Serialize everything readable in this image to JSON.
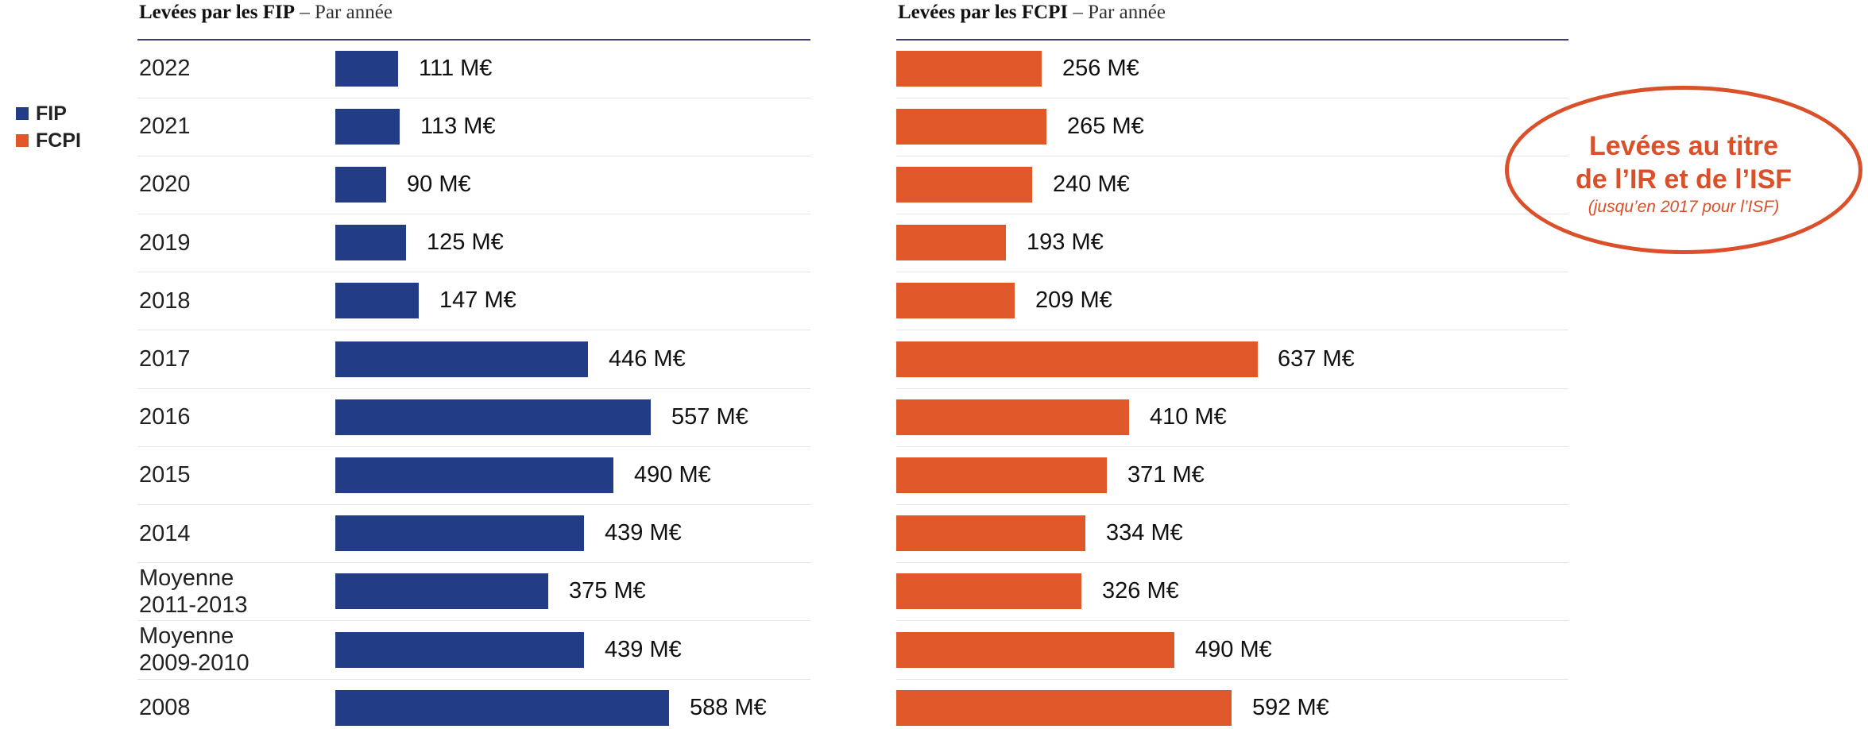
{
  "legend": [
    {
      "label": "FIP",
      "color": "#223d86"
    },
    {
      "label": "FCPI",
      "color": "#e0582a"
    }
  ],
  "callout": {
    "line1": "Levées au titre",
    "line2": "de l’IR et de l’ISF",
    "note": "(jusqu’en 2017 pour l’ISF)"
  },
  "chart_data": [
    {
      "type": "bar",
      "orientation": "horizontal",
      "title_bold": "Levées par les FIP",
      "title_rest": " – Par année",
      "series": [
        {
          "name": "FIP",
          "color": "#223d86"
        }
      ],
      "categories": [
        "2022",
        "2021",
        "2020",
        "2019",
        "2018",
        "2017",
        "2016",
        "2015",
        "2014",
        "Moyenne\n2011-2013",
        "Moyenne\n2009-2010",
        "2008"
      ],
      "values": [
        111,
        113,
        90,
        125,
        147,
        446,
        557,
        490,
        439,
        375,
        439,
        588
      ],
      "value_labels": [
        "111 M€",
        "113 M€",
        "90 M€",
        "125 M€",
        "147 M€",
        "446 M€",
        "557 M€",
        "490 M€",
        "439 M€",
        "375 M€",
        "439 M€",
        "588 M€"
      ],
      "unit": "M€"
    },
    {
      "type": "bar",
      "orientation": "horizontal",
      "title_bold": "Levées par les FCPI",
      "title_rest": " – Par année",
      "series": [
        {
          "name": "FCPI",
          "color": "#e0582a"
        }
      ],
      "categories": [
        "2022",
        "2021",
        "2020",
        "2019",
        "2018",
        "2017",
        "2016",
        "2015",
        "2014",
        "Moyenne\n2011-2013",
        "Moyenne\n2009-2010",
        "2008"
      ],
      "values": [
        256,
        265,
        240,
        193,
        209,
        637,
        410,
        371,
        334,
        326,
        490,
        592
      ],
      "value_labels": [
        "256 M€",
        "265 M€",
        "240 M€",
        "193 M€",
        "209 M€",
        "637 M€",
        "410 M€",
        "371 M€",
        "334 M€",
        "326 M€",
        "490 M€",
        "592 M€"
      ],
      "unit": "M€"
    }
  ]
}
